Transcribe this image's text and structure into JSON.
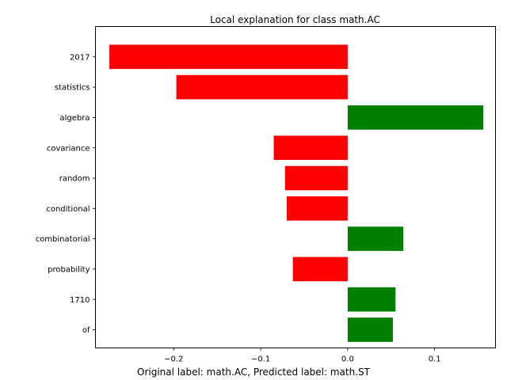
{
  "figure": {
    "caption": "Original label: math.AC, Predicted label: math.ST"
  },
  "chart_data": {
    "type": "bar",
    "orientation": "horizontal",
    "title": "Local explanation for class math.AC",
    "xlabel": "",
    "ylabel": "",
    "xlim": [
      -0.29,
      0.17
    ],
    "grid": false,
    "legend": "none",
    "categories": [
      "2017",
      "statistics",
      "algebra",
      "covariance",
      "random",
      "conditional",
      "combinatorial",
      "probability",
      "1710",
      "of"
    ],
    "values": [
      -0.274,
      -0.197,
      0.156,
      -0.085,
      -0.072,
      -0.07,
      0.064,
      -0.063,
      0.055,
      0.052
    ],
    "xticks": [
      -0.2,
      -0.1,
      0.0,
      0.1
    ],
    "xtick_labels": [
      "−0.2",
      "−0.1",
      "0.0",
      "0.1"
    ],
    "colors": {
      "positive": "#008000",
      "negative": "#ff0000",
      "axis": "#000000"
    }
  }
}
